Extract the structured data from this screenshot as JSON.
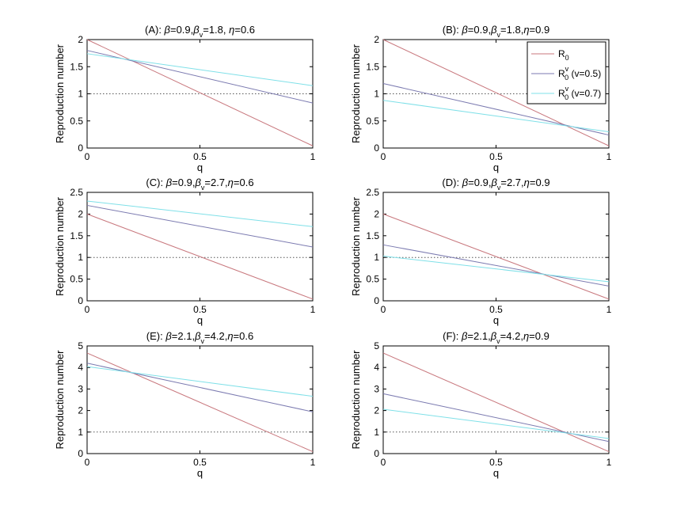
{
  "figure": {
    "colors": {
      "R0": "#c8777d",
      "Rv05": "#7b7ab0",
      "Rv07": "#7fe0e8",
      "reference": "#555555"
    },
    "legend": {
      "entries": [
        {
          "key": "R0",
          "main": "R",
          "sub": "0",
          "sup": "",
          "suffix": ""
        },
        {
          "key": "Rv05",
          "main": "R",
          "sub": "0",
          "sup": "v",
          "suffix": " (v=0.5)"
        },
        {
          "key": "Rv07",
          "main": "R",
          "sub": "0",
          "sup": "v",
          "suffix": " (v=0.7)"
        }
      ]
    }
  },
  "chart_data": [
    {
      "type": "line",
      "title": "(A): β=0.9,βv=1.8, η=0.6",
      "title_parts": {
        "letter": "(A): ",
        "beta": "0.9",
        "betav": "1.8",
        "eta_sep": ", ",
        "eta": "0.6"
      },
      "xlabel": "q",
      "ylabel": "Reproduction number",
      "xlim": [
        0,
        1
      ],
      "ylim": [
        0,
        2
      ],
      "xticks": [
        "0",
        "0.5",
        "1"
      ],
      "yticks": [
        "0",
        "0.5",
        "1",
        "1.5",
        "2"
      ],
      "reference_line": 1,
      "legend": false,
      "series": [
        {
          "key": "R0",
          "x": [
            0,
            1
          ],
          "y": [
            2.0,
            0.04
          ]
        },
        {
          "key": "Rv05",
          "x": [
            0,
            1
          ],
          "y": [
            1.8,
            0.83
          ]
        },
        {
          "key": "Rv07",
          "x": [
            0,
            1
          ],
          "y": [
            1.74,
            1.15
          ]
        }
      ]
    },
    {
      "type": "line",
      "title": "(B): β=0.9,βv=1.8,η=0.9",
      "title_parts": {
        "letter": "(B): ",
        "beta": "0.9",
        "betav": "1.8",
        "eta_sep": ",",
        "eta": "0.9"
      },
      "xlabel": "q",
      "ylabel": "Reproduction number",
      "xlim": [
        0,
        1
      ],
      "ylim": [
        0,
        2
      ],
      "xticks": [
        "0",
        "0.5",
        "1"
      ],
      "yticks": [
        "0",
        "0.5",
        "1",
        "1.5",
        "2"
      ],
      "reference_line": 1,
      "legend": true,
      "series": [
        {
          "key": "R0",
          "x": [
            0,
            1
          ],
          "y": [
            2.0,
            0.04
          ]
        },
        {
          "key": "Rv05",
          "x": [
            0,
            1
          ],
          "y": [
            1.19,
            0.24
          ]
        },
        {
          "key": "Rv07",
          "x": [
            0,
            1
          ],
          "y": [
            0.88,
            0.3
          ]
        }
      ]
    },
    {
      "type": "line",
      "title": "(C): β=0.9,βv=2.7,η=0.6",
      "title_parts": {
        "letter": "(C): ",
        "beta": "0.9",
        "betav": "2.7",
        "eta_sep": ",",
        "eta": "0.6"
      },
      "xlabel": "q",
      "ylabel": "Reproduction number",
      "xlim": [
        0,
        1
      ],
      "ylim": [
        0,
        2.5
      ],
      "xticks": [
        "0",
        "0.5",
        "1"
      ],
      "yticks": [
        "0",
        "0.5",
        "1",
        "1.5",
        "2",
        "2.5"
      ],
      "reference_line": 1,
      "legend": false,
      "series": [
        {
          "key": "R0",
          "x": [
            0,
            1
          ],
          "y": [
            2.0,
            0.04
          ]
        },
        {
          "key": "Rv05",
          "x": [
            0,
            1
          ],
          "y": [
            2.2,
            1.24
          ]
        },
        {
          "key": "Rv07",
          "x": [
            0,
            1
          ],
          "y": [
            2.3,
            1.71
          ]
        }
      ]
    },
    {
      "type": "line",
      "title": "(D): β=0.9,βv=2.7,η=0.9",
      "title_parts": {
        "letter": "(D): ",
        "beta": "0.9",
        "betav": "2.7",
        "eta_sep": ",",
        "eta": "0.9"
      },
      "xlabel": "q",
      "ylabel": "Reproduction number",
      "xlim": [
        0,
        1
      ],
      "ylim": [
        0,
        2.5
      ],
      "xticks": [
        "0",
        "0.5",
        "1"
      ],
      "yticks": [
        "0",
        "0.5",
        "1",
        "1.5",
        "2",
        "2.5"
      ],
      "reference_line": 1,
      "legend": false,
      "series": [
        {
          "key": "R0",
          "x": [
            0,
            1
          ],
          "y": [
            2.0,
            0.04
          ]
        },
        {
          "key": "Rv05",
          "x": [
            0,
            1
          ],
          "y": [
            1.29,
            0.34
          ]
        },
        {
          "key": "Rv07",
          "x": [
            0,
            1
          ],
          "y": [
            1.03,
            0.44
          ]
        }
      ]
    },
    {
      "type": "line",
      "title": "(E): β=2.1,βv=4.2,η=0.6",
      "title_parts": {
        "letter": "(E): ",
        "beta": "2.1",
        "betav": "4.2",
        "eta_sep": ",",
        "eta": "0.6"
      },
      "xlabel": "q",
      "ylabel": "Reproduction number",
      "xlim": [
        0,
        1
      ],
      "ylim": [
        0,
        5
      ],
      "xticks": [
        "0",
        "0.5",
        "1"
      ],
      "yticks": [
        "0",
        "1",
        "2",
        "3",
        "4",
        "5"
      ],
      "reference_line": 1,
      "legend": false,
      "series": [
        {
          "key": "R0",
          "x": [
            0,
            1
          ],
          "y": [
            4.67,
            0.09
          ]
        },
        {
          "key": "Rv05",
          "x": [
            0,
            1
          ],
          "y": [
            4.2,
            1.94
          ]
        },
        {
          "key": "Rv07",
          "x": [
            0,
            1
          ],
          "y": [
            4.04,
            2.66
          ]
        }
      ]
    },
    {
      "type": "line",
      "title": "(F): β=2.1,βv=4.2,η=0.9",
      "title_parts": {
        "letter": "(F): ",
        "beta": "2.1",
        "betav": "4.2",
        "eta_sep": ",",
        "eta": "0.9"
      },
      "xlabel": "q",
      "ylabel": "Reproduction number",
      "xlim": [
        0,
        1
      ],
      "ylim": [
        0,
        5
      ],
      "xticks": [
        "0",
        "0.5",
        "1"
      ],
      "yticks": [
        "0",
        "1",
        "2",
        "3",
        "4",
        "5"
      ],
      "reference_line": 1,
      "legend": false,
      "series": [
        {
          "key": "R0",
          "x": [
            0,
            1
          ],
          "y": [
            4.67,
            0.09
          ]
        },
        {
          "key": "Rv05",
          "x": [
            0,
            1
          ],
          "y": [
            2.78,
            0.56
          ]
        },
        {
          "key": "Rv07",
          "x": [
            0,
            1
          ],
          "y": [
            2.06,
            0.7
          ]
        }
      ]
    }
  ]
}
